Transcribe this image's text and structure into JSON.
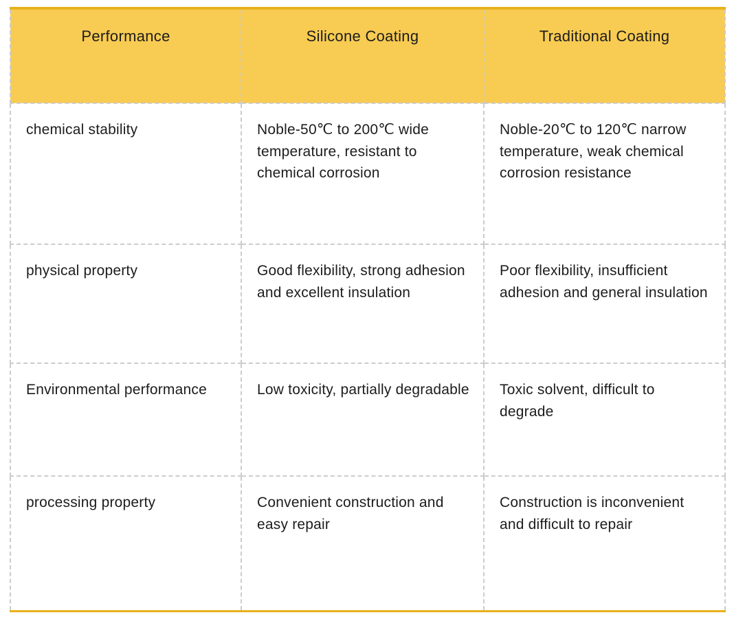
{
  "colors": {
    "header_bg": "#F8CB52",
    "accent_border": "#E8B01C",
    "divider_dash": "#CCCCCC",
    "text": "#1C1C1C"
  },
  "table": {
    "headers": [
      "Performance",
      "Silicone Coating",
      "Traditional Coating"
    ],
    "rows": [
      [
        "chemical stability",
        "Noble-50℃ to 200℃ wide temperature, resistant to chemical corrosion",
        "Noble-20℃ to 120℃ narrow temperature, weak chemical corrosion resistance"
      ],
      [
        "physical property",
        "Good flexibility, strong adhesion and excellent insulation",
        "Poor flexibility, insufficient adhesion and general insulation"
      ],
      [
        "Environmental performance",
        "Low toxicity, partially degradable",
        "Toxic solvent, difficult to degrade"
      ],
      [
        "processing property",
        "Convenient construction and easy repair",
        "Construction is inconvenient and difficult to repair"
      ]
    ]
  },
  "chart_data": {
    "type": "table",
    "title": "",
    "columns": [
      "Performance",
      "Silicone Coating",
      "Traditional Coating"
    ],
    "rows": [
      {
        "performance": "chemical stability",
        "silicone_coating": "Noble-50℃ to 200℃ wide temperature, resistant to chemical corrosion",
        "traditional_coating": "Noble-20℃ to 120℃ narrow temperature, weak chemical corrosion resistance"
      },
      {
        "performance": "physical property",
        "silicone_coating": "Good flexibility, strong adhesion and excellent insulation",
        "traditional_coating": "Poor flexibility, insufficient adhesion and general insulation"
      },
      {
        "performance": "Environmental performance",
        "silicone_coating": "Low toxicity, partially degradable",
        "traditional_coating": "Toxic solvent, difficult to degrade"
      },
      {
        "performance": "processing property",
        "silicone_coating": "Convenient construction and easy repair",
        "traditional_coating": "Construction is inconvenient and difficult to repair"
      }
    ]
  }
}
